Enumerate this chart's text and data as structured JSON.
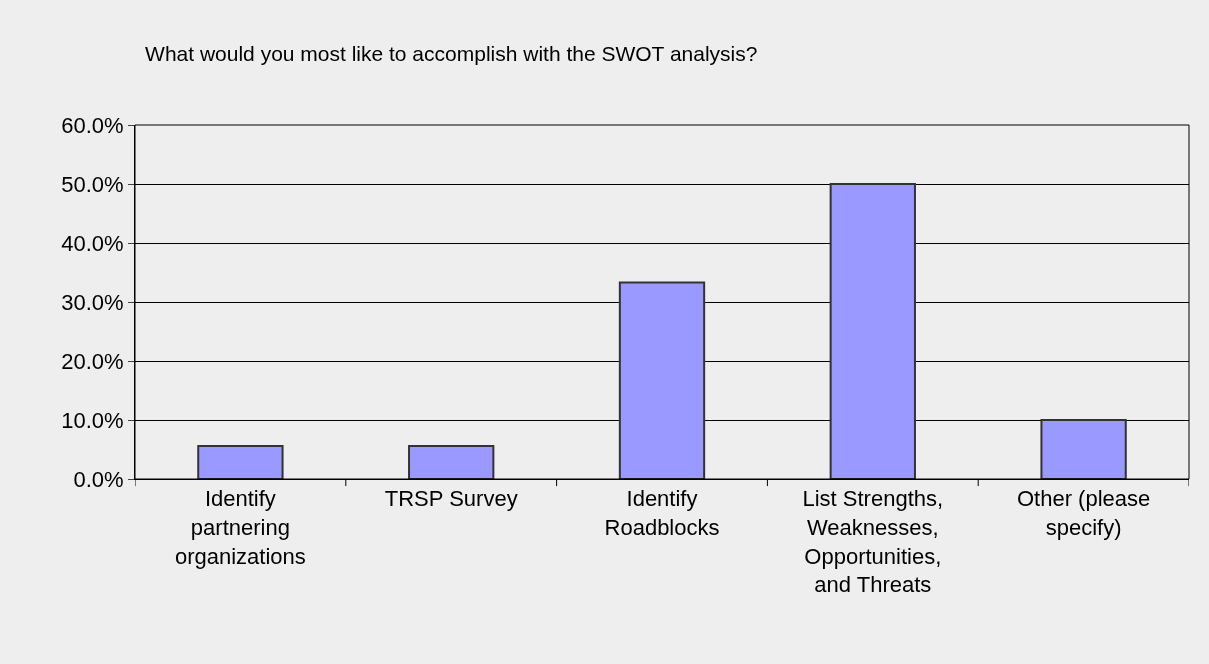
{
  "chart_data": {
    "type": "bar",
    "title": "What would you most like to accomplish with the SWOT analysis?",
    "categories": [
      "Identify partnering organizations",
      "TRSP Survey",
      "Identify Roadblocks",
      "List Strengths, Weaknesses, Opportunities, and Threats",
      "Other (please specify)"
    ],
    "values": [
      5.6,
      5.6,
      33.3,
      50.0,
      10.0
    ],
    "color": "#9999ff",
    "ylim": [
      0,
      60
    ],
    "yticks": [
      {
        "value": 0,
        "label": "0.0%"
      },
      {
        "value": 10,
        "label": "10.0%"
      },
      {
        "value": 20,
        "label": "20.0%"
      },
      {
        "value": 30,
        "label": "30.0%"
      },
      {
        "value": 40,
        "label": "40.0%"
      },
      {
        "value": 50,
        "label": "50.0%"
      },
      {
        "value": 60,
        "label": "60.0%"
      }
    ],
    "grid": "y"
  }
}
